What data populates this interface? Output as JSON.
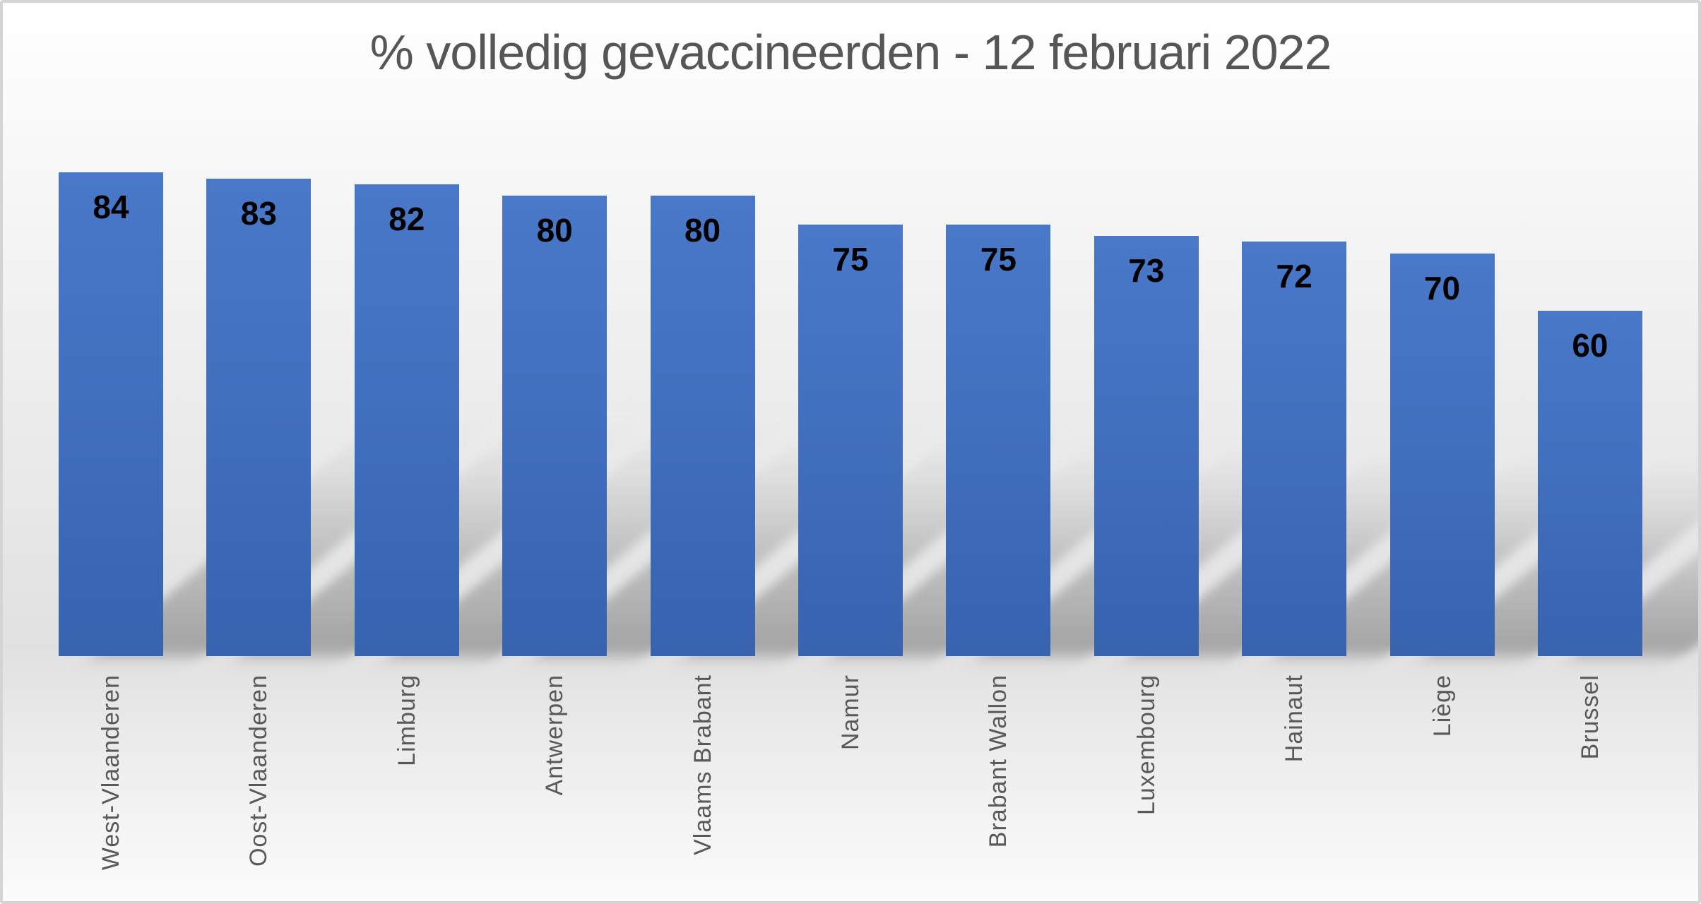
{
  "chart_data": {
    "type": "bar",
    "title": "% volledig gevaccineerden - 12 februari 2022",
    "categories": [
      "West-Vlaanderen",
      "Oost-Vlaanderen",
      "Limburg",
      "Antwerpen",
      "Vlaams Brabant",
      "Namur",
      "Brabant Wallon",
      "Luxembourg",
      "Hainaut",
      "Liège",
      "Brussel"
    ],
    "values": [
      84,
      83,
      82,
      80,
      80,
      75,
      75,
      73,
      72,
      70,
      60
    ],
    "xlabel": "",
    "ylabel": "",
    "ylim": [
      0,
      100
    ],
    "grid": false,
    "legend": false,
    "data_labels": "inside-top",
    "x_label_rotation": -90,
    "bar_color": "#4472c4",
    "bar_gradient_top": "#4a78c9",
    "bar_gradient_bottom": "#3763af",
    "value_label_color": "#000000",
    "axis_label_color": "#595959",
    "title_color": "#565656",
    "background_colors": [
      "#ffffff",
      "#e1e1e1",
      "#fbfbfb"
    ],
    "border_color": "#d4d4d4",
    "bar_shadow": "perspective-lower-right"
  }
}
